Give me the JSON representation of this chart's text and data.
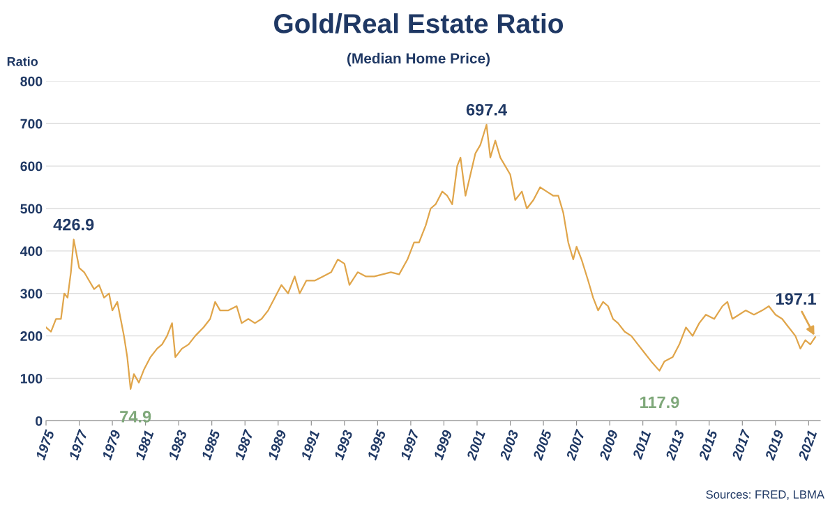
{
  "chart_data": {
    "type": "line",
    "title": "Gold/Real Estate Ratio",
    "subtitle": "(Median Home Price)",
    "ylabel": "Ratio",
    "series": [
      {
        "color": "#e0a54a",
        "x": [
          1975.0,
          1975.3,
          1975.6,
          1975.9,
          1976.1,
          1976.3,
          1976.5,
          1976.67,
          1977.0,
          1977.3,
          1977.6,
          1977.9,
          1978.2,
          1978.5,
          1978.8,
          1979.0,
          1979.3,
          1979.5,
          1979.7,
          1979.9,
          1980.1,
          1980.3,
          1980.6,
          1980.9,
          1981.3,
          1981.7,
          1982.0,
          1982.3,
          1982.6,
          1982.8,
          1983.2,
          1983.6,
          1984.0,
          1984.5,
          1984.9,
          1985.2,
          1985.5,
          1986.0,
          1986.5,
          1986.8,
          1987.2,
          1987.6,
          1988.0,
          1988.4,
          1988.8,
          1989.2,
          1989.6,
          1990.0,
          1990.3,
          1990.7,
          1991.2,
          1991.7,
          1992.2,
          1992.6,
          1993.0,
          1993.3,
          1993.8,
          1994.3,
          1994.8,
          1995.3,
          1995.8,
          1996.3,
          1996.8,
          1997.2,
          1997.5,
          1997.9,
          1998.2,
          1998.5,
          1998.9,
          1999.2,
          1999.5,
          1999.8,
          2000.0,
          2000.3,
          2000.6,
          2000.9,
          2001.2,
          2001.57,
          2001.8,
          2002.1,
          2002.4,
          2002.7,
          2003.0,
          2003.3,
          2003.7,
          2004.0,
          2004.4,
          2004.8,
          2005.2,
          2005.6,
          2005.9,
          2006.2,
          2006.5,
          2006.8,
          2007.0,
          2007.3,
          2007.7,
          2008.0,
          2008.3,
          2008.6,
          2008.9,
          2009.2,
          2009.5,
          2009.9,
          2010.3,
          2010.7,
          2011.1,
          2011.5,
          2012.0,
          2012.3,
          2012.8,
          2013.2,
          2013.6,
          2014.0,
          2014.4,
          2014.8,
          2015.3,
          2015.8,
          2016.1,
          2016.4,
          2016.8,
          2017.2,
          2017.7,
          2018.2,
          2018.6,
          2019.0,
          2019.4,
          2019.8,
          2020.2,
          2020.5,
          2020.8,
          2021.1,
          2021.4
        ],
        "values": [
          220,
          210,
          240,
          240,
          300,
          290,
          350,
          426.9,
          360,
          350,
          330,
          310,
          320,
          290,
          300,
          260,
          280,
          240,
          200,
          150,
          74.9,
          110,
          90,
          120,
          150,
          170,
          180,
          200,
          230,
          150,
          170,
          180,
          200,
          220,
          240,
          280,
          260,
          260,
          270,
          230,
          240,
          230,
          240,
          260,
          290,
          320,
          300,
          340,
          300,
          330,
          330,
          340,
          350,
          380,
          370,
          320,
          350,
          340,
          340,
          345,
          350,
          345,
          380,
          420,
          420,
          460,
          500,
          510,
          540,
          530,
          510,
          600,
          620,
          530,
          580,
          630,
          650,
          697.4,
          620,
          660,
          620,
          600,
          580,
          520,
          540,
          500,
          520,
          550,
          540,
          530,
          530,
          490,
          420,
          380,
          410,
          380,
          330,
          290,
          260,
          280,
          270,
          240,
          230,
          210,
          200,
          180,
          160,
          140,
          117.9,
          140,
          150,
          180,
          220,
          200,
          230,
          250,
          240,
          270,
          280,
          240,
          250,
          260,
          250,
          260,
          270,
          250,
          240,
          220,
          200,
          170,
          190,
          180,
          197.1
        ]
      }
    ],
    "xlim": [
      1975,
      2021.7
    ],
    "xticks": [
      1975,
      1977,
      1979,
      1981,
      1983,
      1985,
      1987,
      1989,
      1991,
      1993,
      1995,
      1997,
      1999,
      2001,
      2003,
      2005,
      2007,
      2009,
      2011,
      2013,
      2015,
      2017,
      2019,
      2021
    ],
    "ylim": [
      0,
      800
    ],
    "yticks": [
      0,
      100,
      200,
      300,
      400,
      500,
      600,
      700,
      800
    ],
    "grid": "y",
    "legend": false,
    "marker": "none",
    "line_style": "solid",
    "annotations": [
      {
        "text": "426.9",
        "x": 1976.67,
        "y": 426.9
      },
      {
        "text": "74.9",
        "x": 1980.1,
        "y": 74.9
      },
      {
        "text": "697.4",
        "x": 2001.57,
        "y": 697.4
      },
      {
        "text": "117.9",
        "x": 2012.0,
        "y": 117.9
      },
      {
        "text": "197.1",
        "x": 2021.4,
        "y": 197.1
      },
      "Sources: FRED, LBMA"
    ]
  }
}
